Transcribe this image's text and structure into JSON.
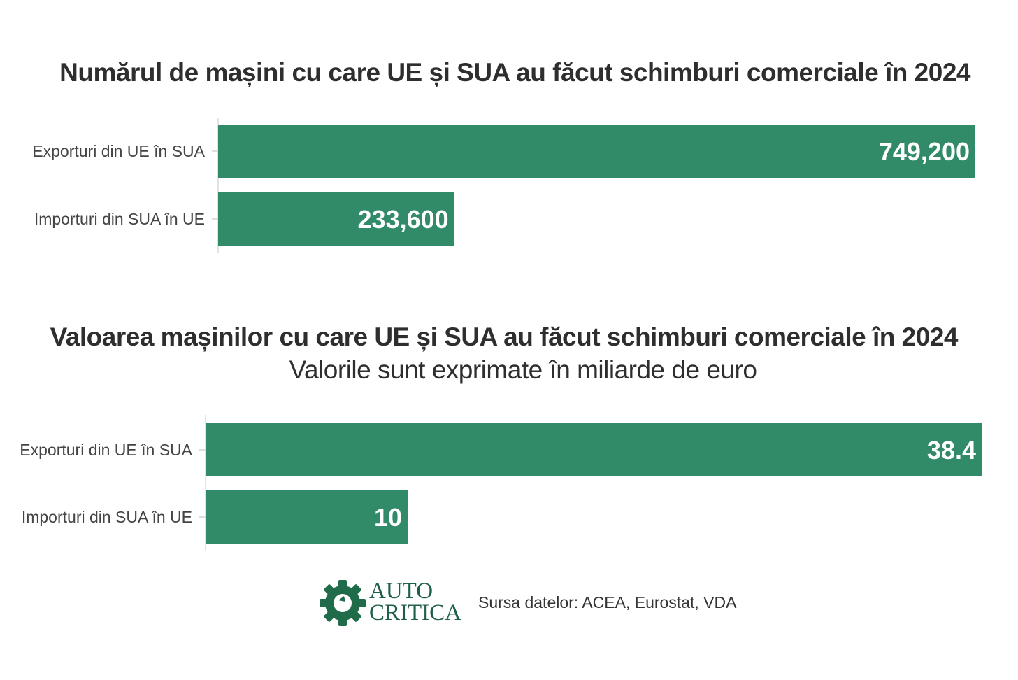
{
  "colors": {
    "bar": "#318a68",
    "bar_label": "#ffffff",
    "axis_text": "#444444",
    "title_text": "#2e2e2e",
    "logo": "#1f6b4a"
  },
  "chart_data": [
    {
      "type": "bar",
      "orientation": "horizontal",
      "title": "Numărul de mașini cu care UE și SUA au făcut schimburi comerciale în 2024",
      "subtitle": "",
      "categories": [
        "Exporturi din UE în SUA",
        "Importuri din SUA în UE"
      ],
      "values": [
        749200,
        233600
      ],
      "value_labels": [
        "749,200",
        "233,600"
      ],
      "xlim": [
        0,
        749200
      ],
      "grid": false
    },
    {
      "type": "bar",
      "orientation": "horizontal",
      "title": "Valoarea mașinilor cu care UE și SUA au făcut schimburi comerciale în 2024",
      "subtitle": "Valorile sunt exprimate în miliarde de euro",
      "categories": [
        "Exporturi din UE în SUA",
        "Importuri din SUA în UE"
      ],
      "values": [
        38.4,
        10
      ],
      "value_labels": [
        "38.4",
        "10"
      ],
      "xlim": [
        0,
        38.4
      ],
      "grid": false
    }
  ],
  "footer": {
    "logo_line1": "AUTO",
    "logo_line2": "CRITICA",
    "source": "Sursa datelor: ACEA, Eurostat, VDA"
  }
}
